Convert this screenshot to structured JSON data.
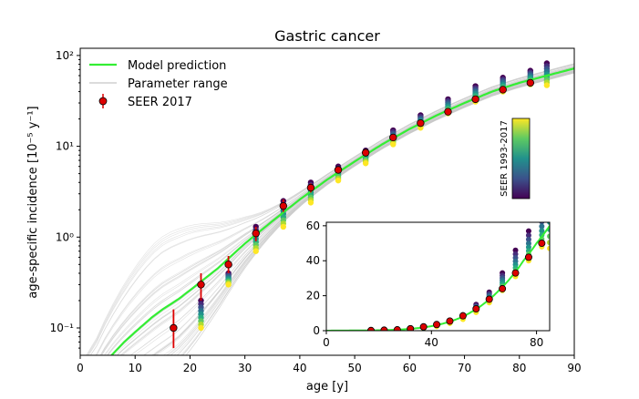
{
  "chart_data": {
    "type": "scatter",
    "title": "Gastric cancer",
    "xlabel": "age [y]",
    "ylabel": "age-specific incidence [10⁻⁵ y⁻¹]",
    "xlim": [
      0,
      90
    ],
    "ylim_log": [
      0.05,
      120
    ],
    "y_scale": "log",
    "x_ticks": [
      "0",
      "10",
      "20",
      "30",
      "40",
      "50",
      "60",
      "70",
      "80",
      "90"
    ],
    "y_ticks": [
      "10⁻¹",
      "10⁰",
      "10¹",
      "10²"
    ],
    "legend": {
      "placement": "top-left",
      "entries": [
        "Model prediction",
        "Parameter range",
        "SEER 2017"
      ]
    },
    "colorbar": {
      "label": "SEER 1993-2017",
      "colormap": "viridis"
    },
    "series": [
      {
        "name": "SEER 2017",
        "color": "#dd0000",
        "x": [
          17,
          22,
          27,
          32,
          37,
          42,
          47,
          52,
          57,
          62,
          67,
          72,
          77,
          82
        ],
        "y": [
          0.1,
          0.3,
          0.5,
          1.1,
          2.2,
          3.5,
          5.5,
          8.5,
          12.5,
          18,
          24,
          33,
          42,
          50
        ],
        "err_lo": [
          0.06,
          0.2,
          0.4,
          0.9,
          1.9,
          3.1,
          5.0,
          7.8,
          11.5,
          16.8,
          22.5,
          31,
          40,
          48
        ],
        "err_hi": [
          0.16,
          0.4,
          0.62,
          1.3,
          2.6,
          3.9,
          6.0,
          9.2,
          13.5,
          19.2,
          25.5,
          35,
          44,
          52
        ]
      },
      {
        "name": "Model prediction",
        "color": "#33ee33",
        "x": [
          0,
          3,
          5,
          8,
          10,
          13,
          15,
          18,
          20,
          25,
          30,
          35,
          40,
          45,
          50,
          55,
          60,
          65,
          70,
          75,
          80,
          85,
          90
        ],
        "y": [
          0.02,
          0.03,
          0.045,
          0.07,
          0.09,
          0.13,
          0.16,
          0.21,
          0.26,
          0.45,
          0.85,
          1.5,
          2.6,
          4.3,
          6.8,
          10.5,
          15.5,
          22,
          30,
          40,
          50,
          60,
          72
        ]
      }
    ],
    "historical_years": {
      "x": [
        22,
        27,
        32,
        37,
        42,
        47,
        52,
        57,
        62,
        67,
        72,
        77,
        82,
        85
      ],
      "y_min": [
        0.1,
        0.3,
        0.7,
        1.3,
        2.4,
        4.2,
        6.5,
        10.5,
        16,
        23,
        31,
        40,
        48,
        47
      ],
      "y_max": [
        0.2,
        0.4,
        1.3,
        2.5,
        4.0,
        6.0,
        9.0,
        15,
        22,
        33,
        46,
        57,
        68,
        82
      ]
    },
    "inset": {
      "xlim": [
        0,
        85
      ],
      "ylim": [
        0,
        62
      ],
      "x_ticks": [
        "0",
        "40",
        "80"
      ],
      "y_ticks": [
        "0",
        "20",
        "40",
        "60"
      ]
    }
  }
}
